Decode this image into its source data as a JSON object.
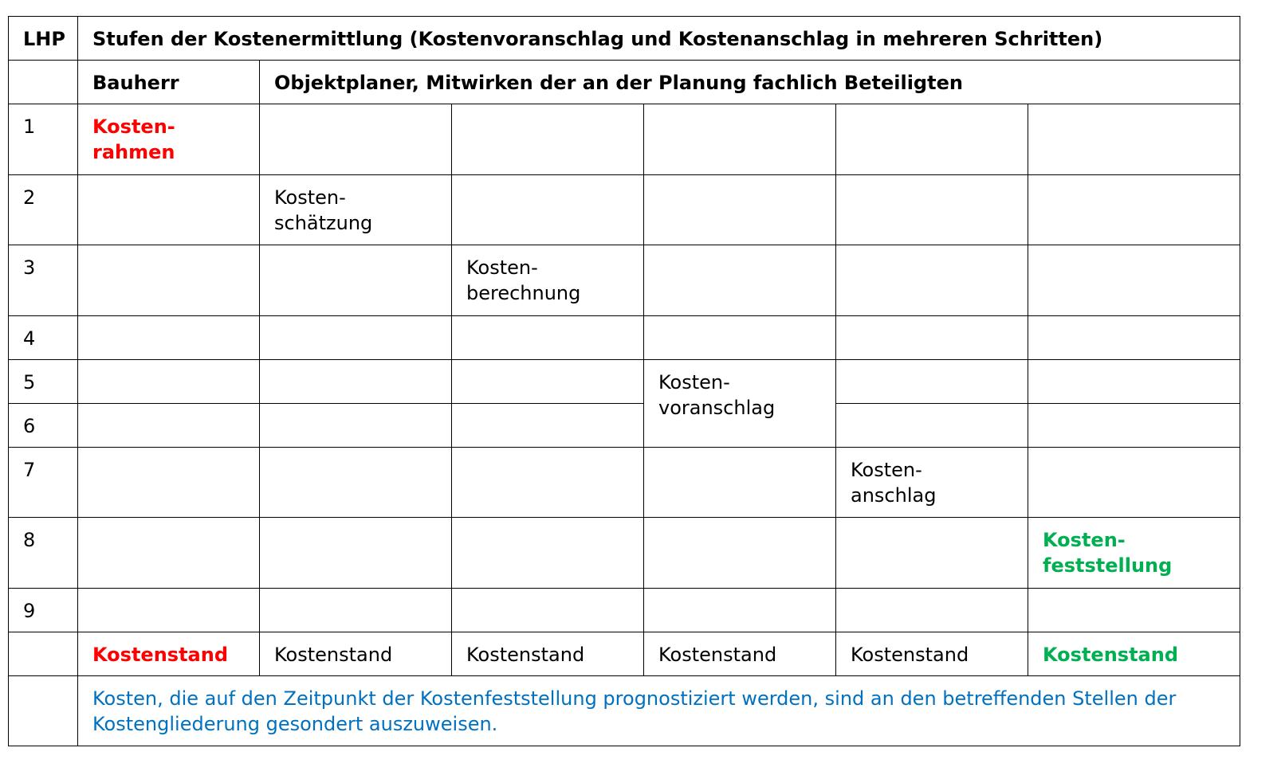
{
  "header": {
    "lhp": "LHP",
    "title": "Stufen der Kostenermittlung (Kostenvoranschlag und Kostenanschlag in mehreren Schritten)"
  },
  "subheader": {
    "owner": "Bauherr",
    "planner": "Objektplaner, Mitwirken der an der Planung fachlich Beteiligten"
  },
  "rows": [
    {
      "lhp": "1",
      "stage": "Kosten-\nrahmen"
    },
    {
      "lhp": "2",
      "stage": "Kosten-\nschätzung"
    },
    {
      "lhp": "3",
      "stage": "Kosten-\nberechnung"
    },
    {
      "lhp": "4"
    },
    {
      "lhp": "5",
      "stage": "Kosten-\nvoranschlag"
    },
    {
      "lhp": "6"
    },
    {
      "lhp": "7",
      "stage": "Kosten-\nanschlag"
    },
    {
      "lhp": "8",
      "stage": "Kosten-\nfeststellung"
    },
    {
      "lhp": "9"
    }
  ],
  "footer": [
    "Kostenstand",
    "Kostenstand",
    "Kostenstand",
    "Kostenstand",
    "Kostenstand",
    "Kostenstand"
  ],
  "note": "Kosten, die auf den Zeitpunkt der Kostenfeststellung prognostiziert werden, sind an den betreffenden Stellen der Kostengliederung gesondert auszuweisen."
}
